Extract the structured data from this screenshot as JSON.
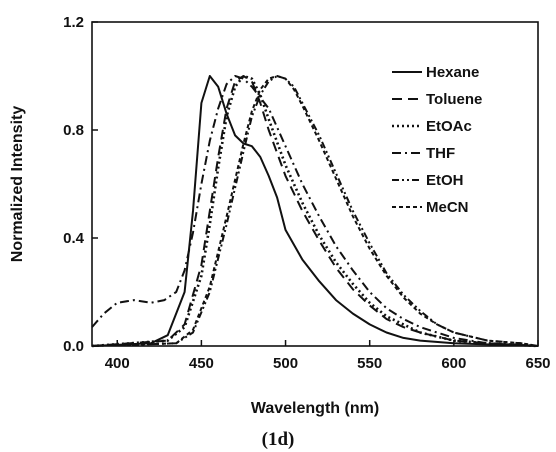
{
  "chart_data": {
    "type": "line",
    "title": "",
    "xlabel": "Wavelength (nm)",
    "ylabel": "Normalized Intensity",
    "caption": "(1d)",
    "xlim": [
      385,
      650
    ],
    "ylim": [
      0,
      1.2
    ],
    "xticks": [
      "400",
      "450",
      "500",
      "550",
      "600",
      "650"
    ],
    "yticks": [
      "0.0",
      "0.4",
      "0.8",
      "1.2"
    ],
    "legend_position": "top-right",
    "series": [
      {
        "name": "Hexane",
        "dash": "solid",
        "points": [
          [
            385,
            0
          ],
          [
            420,
            0.01
          ],
          [
            430,
            0.04
          ],
          [
            440,
            0.2
          ],
          [
            445,
            0.5
          ],
          [
            450,
            0.9
          ],
          [
            455,
            1.0
          ],
          [
            460,
            0.96
          ],
          [
            465,
            0.86
          ],
          [
            470,
            0.78
          ],
          [
            475,
            0.75
          ],
          [
            480,
            0.74
          ],
          [
            485,
            0.7
          ],
          [
            490,
            0.63
          ],
          [
            495,
            0.55
          ],
          [
            500,
            0.43
          ],
          [
            510,
            0.32
          ],
          [
            520,
            0.24
          ],
          [
            530,
            0.17
          ],
          [
            540,
            0.12
          ],
          [
            550,
            0.08
          ],
          [
            560,
            0.05
          ],
          [
            570,
            0.03
          ],
          [
            580,
            0.02
          ],
          [
            600,
            0.01
          ],
          [
            650,
            0
          ]
        ]
      },
      {
        "name": "Toluene",
        "dash": "long-dash",
        "points": [
          [
            385,
            0
          ],
          [
            430,
            0.02
          ],
          [
            440,
            0.08
          ],
          [
            450,
            0.3
          ],
          [
            455,
            0.5
          ],
          [
            460,
            0.7
          ],
          [
            465,
            0.88
          ],
          [
            470,
            0.98
          ],
          [
            475,
            1.0
          ],
          [
            480,
            0.98
          ],
          [
            485,
            0.9
          ],
          [
            490,
            0.8
          ],
          [
            500,
            0.63
          ],
          [
            510,
            0.5
          ],
          [
            520,
            0.39
          ],
          [
            530,
            0.29
          ],
          [
            540,
            0.21
          ],
          [
            550,
            0.15
          ],
          [
            560,
            0.1
          ],
          [
            570,
            0.07
          ],
          [
            580,
            0.05
          ],
          [
            600,
            0.02
          ],
          [
            620,
            0.01
          ],
          [
            650,
            0
          ]
        ]
      },
      {
        "name": "EtOAc",
        "dash": "dot",
        "points": [
          [
            385,
            0
          ],
          [
            430,
            0.02
          ],
          [
            440,
            0.07
          ],
          [
            450,
            0.26
          ],
          [
            455,
            0.45
          ],
          [
            460,
            0.66
          ],
          [
            465,
            0.85
          ],
          [
            470,
            0.96
          ],
          [
            475,
            1.0
          ],
          [
            480,
            0.99
          ],
          [
            485,
            0.93
          ],
          [
            490,
            0.84
          ],
          [
            500,
            0.67
          ],
          [
            510,
            0.53
          ],
          [
            520,
            0.41
          ],
          [
            530,
            0.31
          ],
          [
            540,
            0.23
          ],
          [
            550,
            0.16
          ],
          [
            560,
            0.11
          ],
          [
            570,
            0.08
          ],
          [
            580,
            0.05
          ],
          [
            600,
            0.02
          ],
          [
            620,
            0.01
          ],
          [
            650,
            0
          ]
        ]
      },
      {
        "name": "THF",
        "dash": "dash-dot",
        "points": [
          [
            385,
            0.07
          ],
          [
            392,
            0.12
          ],
          [
            400,
            0.16
          ],
          [
            410,
            0.17
          ],
          [
            420,
            0.16
          ],
          [
            428,
            0.17
          ],
          [
            435,
            0.2
          ],
          [
            440,
            0.28
          ],
          [
            445,
            0.42
          ],
          [
            450,
            0.6
          ],
          [
            455,
            0.76
          ],
          [
            460,
            0.88
          ],
          [
            465,
            0.97
          ],
          [
            470,
            1.0
          ],
          [
            475,
            0.99
          ],
          [
            480,
            0.96
          ],
          [
            490,
            0.88
          ],
          [
            500,
            0.74
          ],
          [
            510,
            0.6
          ],
          [
            520,
            0.48
          ],
          [
            530,
            0.37
          ],
          [
            540,
            0.28
          ],
          [
            550,
            0.2
          ],
          [
            560,
            0.14
          ],
          [
            570,
            0.1
          ],
          [
            580,
            0.07
          ],
          [
            600,
            0.03
          ],
          [
            620,
            0.01
          ],
          [
            650,
            0
          ]
        ]
      },
      {
        "name": "EtOH",
        "dash": "dash-dot-dot",
        "points": [
          [
            385,
            0
          ],
          [
            435,
            0.01
          ],
          [
            445,
            0.05
          ],
          [
            455,
            0.2
          ],
          [
            465,
            0.45
          ],
          [
            475,
            0.72
          ],
          [
            480,
            0.85
          ],
          [
            485,
            0.93
          ],
          [
            490,
            0.98
          ],
          [
            495,
            1.0
          ],
          [
            500,
            0.99
          ],
          [
            505,
            0.96
          ],
          [
            510,
            0.9
          ],
          [
            520,
            0.78
          ],
          [
            530,
            0.64
          ],
          [
            540,
            0.5
          ],
          [
            550,
            0.38
          ],
          [
            560,
            0.27
          ],
          [
            570,
            0.19
          ],
          [
            580,
            0.13
          ],
          [
            590,
            0.08
          ],
          [
            600,
            0.05
          ],
          [
            620,
            0.02
          ],
          [
            640,
            0.01
          ],
          [
            650,
            0
          ]
        ]
      },
      {
        "name": "MeCN",
        "dash": "short-dash",
        "points": [
          [
            385,
            0
          ],
          [
            435,
            0.01
          ],
          [
            445,
            0.06
          ],
          [
            455,
            0.22
          ],
          [
            465,
            0.48
          ],
          [
            475,
            0.75
          ],
          [
            480,
            0.87
          ],
          [
            485,
            0.95
          ],
          [
            490,
            0.99
          ],
          [
            495,
            1.0
          ],
          [
            500,
            0.99
          ],
          [
            505,
            0.95
          ],
          [
            510,
            0.89
          ],
          [
            520,
            0.76
          ],
          [
            530,
            0.62
          ],
          [
            540,
            0.48
          ],
          [
            550,
            0.36
          ],
          [
            560,
            0.26
          ],
          [
            570,
            0.18
          ],
          [
            580,
            0.12
          ],
          [
            590,
            0.08
          ],
          [
            600,
            0.05
          ],
          [
            620,
            0.02
          ],
          [
            640,
            0.01
          ],
          [
            650,
            0
          ]
        ]
      }
    ]
  }
}
